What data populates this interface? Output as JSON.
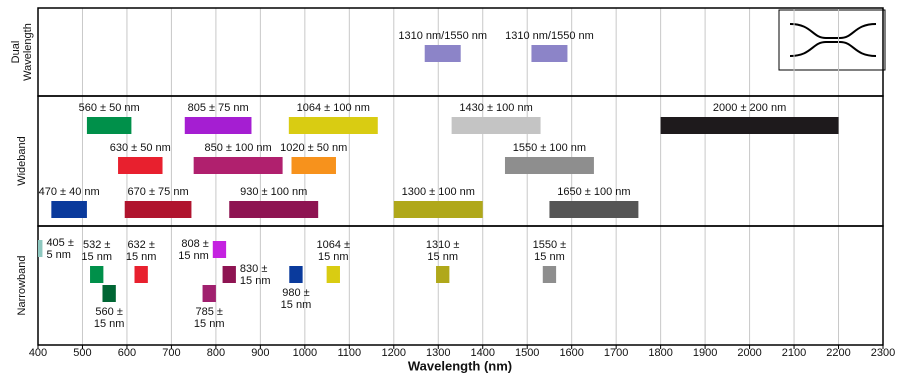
{
  "chart_data": {
    "type": "range",
    "x_label": "Wavelength (nm)",
    "xlim": [
      400,
      2300
    ],
    "xticks": [
      400,
      500,
      600,
      700,
      800,
      900,
      1000,
      1100,
      1200,
      1300,
      1400,
      1500,
      1600,
      1700,
      1800,
      1900,
      2000,
      2100,
      2200,
      2300
    ],
    "grid": true,
    "panels": [
      {
        "name": [
          "Dual",
          "Wavelength"
        ],
        "bars": [
          {
            "label": [
              "1310 nm/1550 nm"
            ],
            "center": 1310,
            "color": "#8c84c8"
          },
          {
            "label": [
              "1310 nm/1550 nm"
            ],
            "center": 1550,
            "color": "#8c84c8"
          }
        ]
      },
      {
        "name": [
          "Wideband"
        ],
        "bars": [
          {
            "label": [
              "560 ± 50 nm"
            ],
            "center": 560,
            "halfwidth": 50,
            "color": "#00904a"
          },
          {
            "label": [
              "805 ± 75 nm"
            ],
            "center": 805,
            "halfwidth": 75,
            "color": "#a51ed2"
          },
          {
            "label": [
              "1064 ± 100 nm"
            ],
            "center": 1064,
            "halfwidth": 100,
            "color": "#d9cc12"
          },
          {
            "label": [
              "1430 ± 100 nm"
            ],
            "center": 1430,
            "halfwidth": 100,
            "color": "#c4c4c4"
          },
          {
            "label": [
              "2000 ± 200 nm"
            ],
            "center": 2000,
            "halfwidth": 200,
            "color": "#1e1a1c"
          },
          {
            "label": [
              "630 ± 50 nm"
            ],
            "center": 630,
            "halfwidth": 50,
            "color": "#e8202e"
          },
          {
            "label": [
              "850 ± 100 nm"
            ],
            "center": 850,
            "halfwidth": 100,
            "color": "#b0206e"
          },
          {
            "label": [
              "1020 ± 50 nm"
            ],
            "center": 1020,
            "halfwidth": 50,
            "color": "#f7921c"
          },
          {
            "label": [
              "1550 ± 100 nm"
            ],
            "center": 1550,
            "halfwidth": 100,
            "color": "#8e8e8e"
          },
          {
            "label": [
              "470 ± 40 nm"
            ],
            "center": 470,
            "halfwidth": 40,
            "color": "#0a3a9c"
          },
          {
            "label": [
              "670 ± 75 nm"
            ],
            "center": 670,
            "halfwidth": 75,
            "color": "#b0142e"
          },
          {
            "label": [
              "930 ± 100 nm"
            ],
            "center": 930,
            "halfwidth": 100,
            "color": "#8e1452"
          },
          {
            "label": [
              "1300 ± 100 nm"
            ],
            "center": 1300,
            "halfwidth": 100,
            "color": "#b0a81a"
          },
          {
            "label": [
              "1650 ± 100 nm"
            ],
            "center": 1650,
            "halfwidth": 100,
            "color": "#555555"
          }
        ]
      },
      {
        "name": [
          "Narrowband"
        ],
        "bars": [
          {
            "label": [
              "405 ±",
              "5 nm"
            ],
            "center": 405,
            "halfwidth": 5,
            "color": "#8ec8c0"
          },
          {
            "label": [
              "532 ±",
              "15 nm"
            ],
            "center": 532,
            "halfwidth": 15,
            "color": "#00904a"
          },
          {
            "label": [
              "560 ±",
              "15 nm"
            ],
            "center": 560,
            "halfwidth": 15,
            "color": "#006634"
          },
          {
            "label": [
              "632 ±",
              "15 nm"
            ],
            "center": 632,
            "halfwidth": 15,
            "color": "#e8202e"
          },
          {
            "label": [
              "808 ±",
              "15 nm"
            ],
            "center": 808,
            "halfwidth": 15,
            "color": "#c422e0"
          },
          {
            "label": [
              "785 ±",
              "15 nm"
            ],
            "center": 785,
            "halfwidth": 15,
            "color": "#a0206e"
          },
          {
            "label": [
              "830 ±",
              "15 nm"
            ],
            "center": 830,
            "halfwidth": 15,
            "color": "#8e1452"
          },
          {
            "label": [
              "980 ±",
              "15 nm"
            ],
            "center": 980,
            "halfwidth": 15,
            "color": "#0a3a9c"
          },
          {
            "label": [
              "1064 ±",
              "15 nm"
            ],
            "center": 1064,
            "halfwidth": 15,
            "color": "#d9cc12"
          },
          {
            "label": [
              "1310 ±",
              "15 nm"
            ],
            "center": 1310,
            "halfwidth": 15,
            "color": "#b0a81a"
          },
          {
            "label": [
              "1550 ±",
              "15 nm"
            ],
            "center": 1550,
            "halfwidth": 15,
            "color": "#8e8e8e"
          }
        ]
      }
    ]
  }
}
